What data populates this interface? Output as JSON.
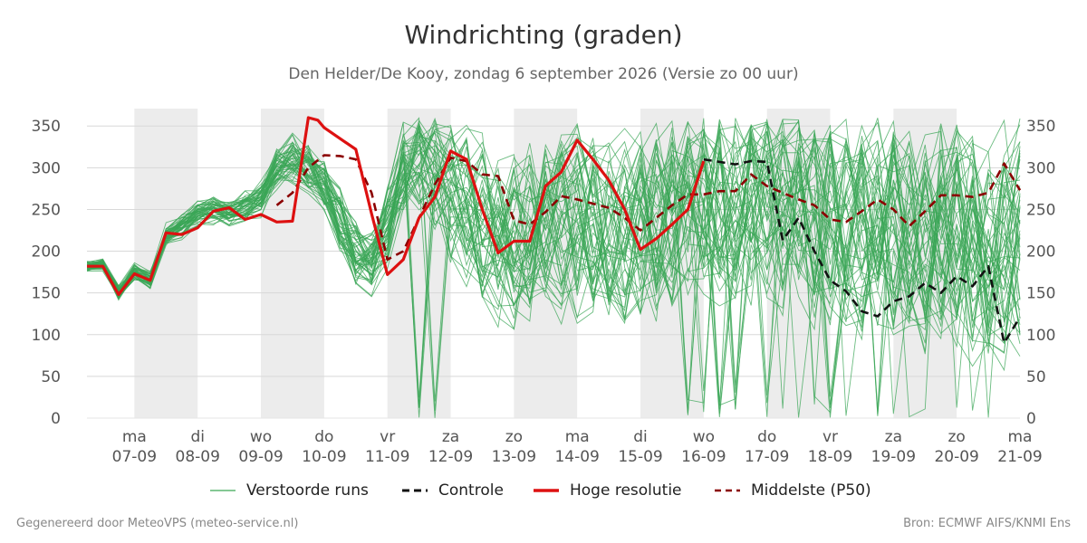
{
  "header": {
    "title": "Windrichting (graden)",
    "subtitle": "Den Helder/De Kooy, zondag  6 september 2026 (Versie zo 00 uur)"
  },
  "footer": {
    "left": "Gegenereerd door MeteoVPS (meteo-service.nl)",
    "right": "Bron: ECMWF AIFS/KNMI Ens"
  },
  "legend": [
    {
      "label": "Verstoorde runs",
      "style": "thin-solid",
      "color": "#3aa655"
    },
    {
      "label": "Controle",
      "style": "dashed",
      "color": "#111111"
    },
    {
      "label": "Hoge resolutie",
      "style": "thick-solid",
      "color": "#dd1111"
    },
    {
      "label": "Middelste (P50)",
      "style": "dashed",
      "color": "#8b0000"
    }
  ],
  "chart_data": {
    "type": "line",
    "title": "Windrichting (graden)",
    "ylim": [
      0,
      360
    ],
    "yticks": [
      0,
      50,
      100,
      150,
      200,
      250,
      300,
      350
    ],
    "xlim_days": [
      6.25,
      21.0
    ],
    "grid": true,
    "legend_position": "bottom",
    "weekend_shading": [
      [
        7,
        8
      ],
      [
        9,
        10
      ],
      [
        11,
        12
      ],
      [
        13,
        14
      ],
      [
        15,
        16
      ],
      [
        17,
        18
      ],
      [
        19,
        20
      ]
    ],
    "x_tick_labels": [
      {
        "day": "ma",
        "date": "07-09"
      },
      {
        "day": "di",
        "date": "08-09"
      },
      {
        "day": "wo",
        "date": "09-09"
      },
      {
        "day": "do",
        "date": "10-09"
      },
      {
        "day": "vr",
        "date": "11-09"
      },
      {
        "day": "za",
        "date": "12-09"
      },
      {
        "day": "zo",
        "date": "13-09"
      },
      {
        "day": "ma",
        "date": "14-09"
      },
      {
        "day": "di",
        "date": "15-09"
      },
      {
        "day": "wo",
        "date": "16-09"
      },
      {
        "day": "do",
        "date": "17-09"
      },
      {
        "day": "vr",
        "date": "18-09"
      },
      {
        "day": "za",
        "date": "19-09"
      },
      {
        "day": "zo",
        "date": "20-09"
      },
      {
        "day": "ma",
        "date": "21-09"
      }
    ],
    "ensemble": {
      "name": "Verstoorde runs",
      "color": "#3aa655",
      "members": 50,
      "anchor_times": [
        6.25,
        6.5,
        6.75,
        7.0,
        7.25,
        7.5,
        7.75,
        8.0,
        8.25,
        8.5,
        8.75,
        9.0,
        9.25,
        9.5,
        9.75,
        10.0,
        10.25,
        10.5,
        10.75,
        11.0,
        11.25,
        11.5,
        11.75,
        12.0,
        12.5,
        13.0,
        13.5,
        14.0,
        14.5,
        15.0,
        15.5,
        16.0,
        16.5,
        17.0,
        17.5,
        18.0,
        18.5,
        19.0,
        19.5,
        20.0,
        20.5,
        21.0
      ],
      "center": [
        182,
        185,
        150,
        175,
        165,
        220,
        230,
        245,
        250,
        245,
        255,
        265,
        300,
        310,
        300,
        280,
        240,
        200,
        185,
        230,
        290,
        310,
        300,
        270,
        230,
        215,
        240,
        230,
        215,
        220,
        245,
        270,
        265,
        260,
        250,
        245,
        235,
        230,
        220,
        225,
        215,
        220
      ],
      "spread": [
        6,
        6,
        8,
        8,
        8,
        10,
        12,
        12,
        12,
        12,
        15,
        18,
        22,
        25,
        28,
        30,
        35,
        35,
        35,
        45,
        55,
        60,
        70,
        80,
        90,
        95,
        100,
        105,
        105,
        105,
        110,
        110,
        115,
        115,
        120,
        120,
        120,
        125,
        125,
        125,
        130,
        130
      ]
    },
    "series": [
      {
        "name": "Hoge resolutie",
        "color": "#dd1111",
        "style": "thick-solid",
        "x": [
          6.25,
          6.5,
          6.75,
          7.0,
          7.25,
          7.5,
          7.75,
          8.0,
          8.25,
          8.5,
          8.75,
          9.0,
          9.25,
          9.5,
          9.75,
          9.9,
          10.0,
          10.25,
          10.5,
          10.75,
          11.0,
          11.25,
          11.5,
          11.75,
          12.0,
          12.25,
          12.5,
          12.75,
          13.0,
          13.25,
          13.5,
          13.75,
          14.0,
          14.25,
          14.5,
          14.75,
          15.0,
          15.25,
          15.5,
          15.75,
          16.0
        ],
        "y": [
          182,
          182,
          148,
          173,
          165,
          222,
          220,
          228,
          248,
          252,
          238,
          244,
          235,
          236,
          360,
          357,
          348,
          335,
          322,
          245,
          172,
          190,
          240,
          265,
          320,
          310,
          250,
          198,
          212,
          212,
          278,
          295,
          333,
          310,
          285,
          250,
          202,
          215,
          232,
          250,
          308
        ]
      },
      {
        "name": "Controle",
        "color": "#111111",
        "style": "dashed",
        "x": [
          16.0,
          16.25,
          16.5,
          16.75,
          17.0,
          17.25,
          17.5,
          17.75,
          18.0,
          18.25,
          18.5,
          18.75,
          19.0,
          19.25,
          19.5,
          19.75,
          20.0,
          20.25,
          20.5,
          20.75,
          21.0
        ],
        "y": [
          310,
          307,
          304,
          308,
          307,
          213,
          240,
          200,
          165,
          152,
          128,
          122,
          140,
          146,
          162,
          150,
          170,
          158,
          182,
          90,
          121
        ]
      },
      {
        "name": "Middelste (P50)",
        "color": "#8b0000",
        "style": "dashed",
        "x": [
          9.25,
          9.5,
          9.75,
          10.0,
          10.25,
          10.5,
          10.75,
          11.0,
          11.25,
          11.5,
          11.75,
          12.0,
          12.25,
          12.5,
          12.75,
          13.0,
          13.25,
          13.5,
          13.75,
          14.0,
          14.25,
          14.5,
          14.75,
          15.0,
          15.25,
          15.5,
          15.75,
          16.0,
          16.25,
          16.5,
          16.75,
          17.0,
          17.25,
          17.5,
          17.75,
          18.0,
          18.25,
          18.5,
          18.75,
          19.0,
          19.25,
          19.5,
          19.75,
          20.0,
          20.25,
          20.5,
          20.75,
          21.0
        ],
        "y": [
          255,
          270,
          300,
          315,
          314,
          310,
          270,
          190,
          200,
          240,
          280,
          312,
          308,
          292,
          290,
          237,
          232,
          247,
          266,
          262,
          257,
          252,
          240,
          225,
          240,
          255,
          268,
          268,
          272,
          272,
          292,
          278,
          270,
          262,
          255,
          238,
          235,
          248,
          262,
          250,
          230,
          248,
          267,
          267,
          265,
          270,
          305,
          273
        ]
      }
    ]
  }
}
